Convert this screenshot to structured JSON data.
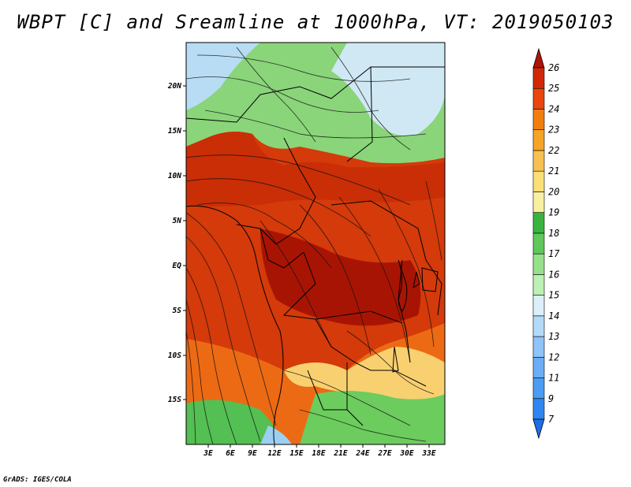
{
  "title": "WBPT [C] and Sreamline at 1000hPa, VT: 2019050103",
  "footer": "GrADS: IGES/COLA",
  "map": {
    "lat_labels": [
      "20N",
      "15N",
      "10N",
      "5N",
      "EQ",
      "5S",
      "10S",
      "15S"
    ],
    "lon_labels": [
      "3E",
      "6E",
      "9E",
      "12E",
      "15E",
      "18E",
      "21E",
      "24E",
      "27E",
      "30E",
      "33E"
    ]
  },
  "colorbar": {
    "levels": [
      "7",
      "9",
      "11",
      "12",
      "13",
      "14",
      "15",
      "16",
      "17",
      "18",
      "19",
      "20",
      "21",
      "22",
      "23",
      "24",
      "25",
      "26"
    ],
    "colors": [
      "#1e6ee8",
      "#2e86f0",
      "#4a9cf4",
      "#6aaef6",
      "#8ec4f8",
      "#b4daf9",
      "#dcf0fb",
      "#bdf0b4",
      "#96e08a",
      "#5ec85a",
      "#38b43e",
      "#f8f0a0",
      "#fce077",
      "#f8c050",
      "#f6a426",
      "#f27e10",
      "#e8460c",
      "#d02806",
      "#b01404"
    ],
    "under_color": "#1e6ee8",
    "over_color": "#b01404"
  }
}
